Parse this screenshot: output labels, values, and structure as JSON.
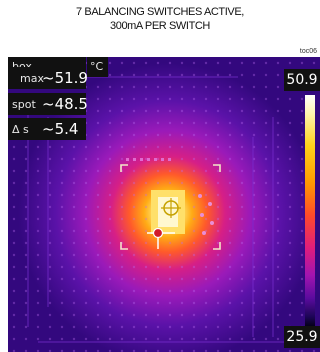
{
  "title_line1": "7 BALANCING SWITCHES ACTIVE,",
  "title_line2": "300mA PER SWITCH",
  "figure_tag": "toc06",
  "thermal": {
    "unit": "°C",
    "box_label": "box",
    "max_label": "max",
    "max_value": "~51.9",
    "spot_label": "spot",
    "spot_value": "~48.5",
    "delta_label": "Δ s",
    "delta_value": "~5.4",
    "scale_max": "50.9",
    "scale_min": "25.9"
  },
  "colors": {
    "background_purple": "#3a0a8c",
    "hot_yellow": "#fff3a0",
    "crosshair_red": "#d11a2a",
    "readout_bg": "#111111"
  }
}
